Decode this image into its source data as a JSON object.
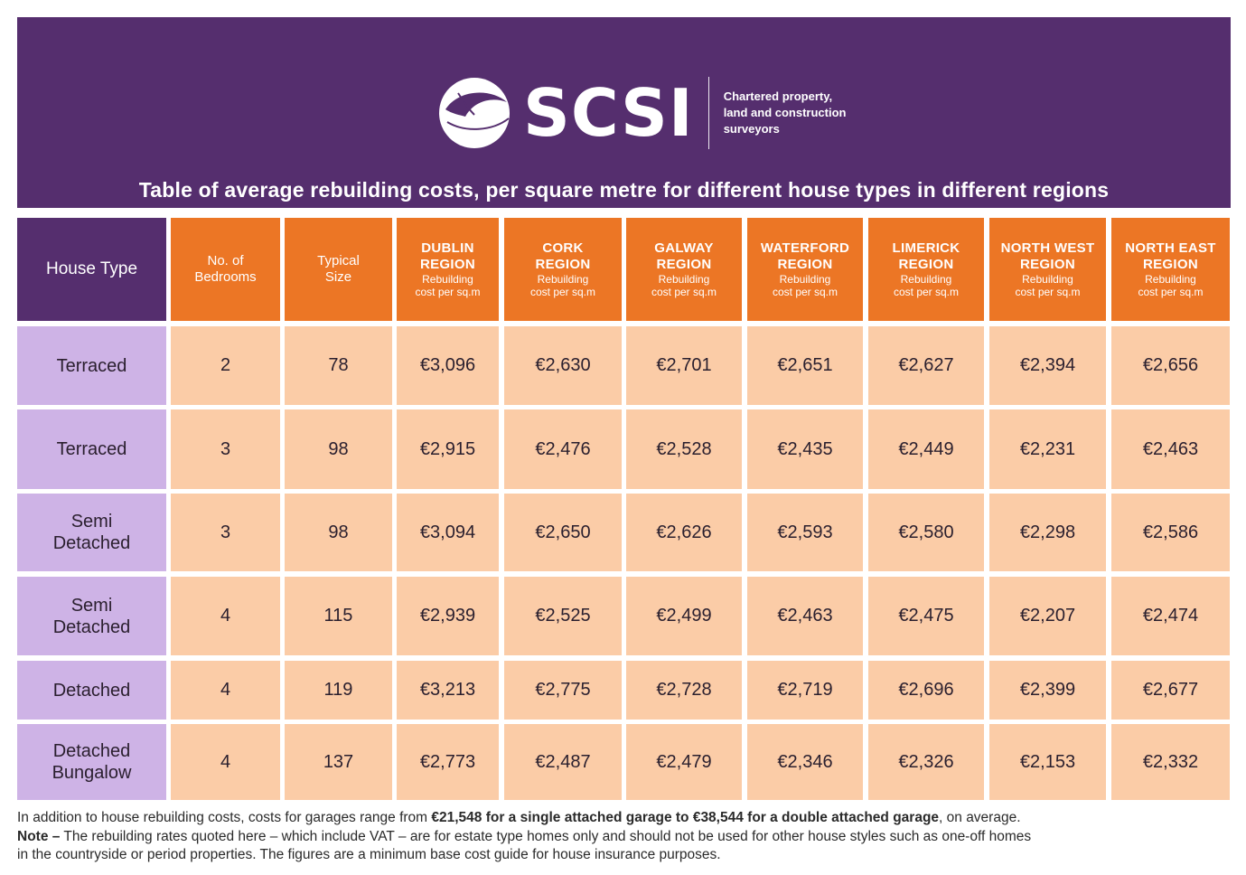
{
  "brand": {
    "name": "SCSI",
    "tagline_lines": [
      "Chartered property,",
      "land and construction",
      "surveyors"
    ],
    "logo_icon": "scsi-globe-icon",
    "colors": {
      "purple": "#552e6e",
      "orange": "#ec7625",
      "lilac": "#ceb3e6",
      "peach": "#fbcca7"
    }
  },
  "title": "Table of average rebuilding costs, per square metre for different house types in different regions",
  "table": {
    "headers": {
      "house_type": "House Type",
      "bedrooms_lines": [
        "No. of",
        "Bedrooms"
      ],
      "size_lines": [
        "Typical",
        "Size"
      ],
      "region_sub_lines": [
        "Rebuilding",
        "cost per sq.m"
      ],
      "regions": [
        {
          "line1": "DUBLIN",
          "line2": "REGION"
        },
        {
          "line1": "CORK",
          "line2": "REGION"
        },
        {
          "line1": "GALWAY",
          "line2": "REGION"
        },
        {
          "line1": "WATERFORD",
          "line2": "REGION"
        },
        {
          "line1": "LIMERICK",
          "line2": "REGION"
        },
        {
          "line1": "NORTH WEST",
          "line2": "REGION"
        },
        {
          "line1": "NORTH EAST",
          "line2": "REGION"
        }
      ]
    },
    "rows": [
      {
        "type_lines": [
          "Terraced"
        ],
        "bedrooms": "2",
        "size": "78",
        "costs": [
          "€3,096",
          "€2,630",
          "€2,701",
          "€2,651",
          "€2,627",
          "€2,394",
          "€2,656"
        ]
      },
      {
        "type_lines": [
          "Terraced"
        ],
        "bedrooms": "3",
        "size": "98",
        "costs": [
          "€2,915",
          "€2,476",
          "€2,528",
          "€2,435",
          "€2,449",
          "€2,231",
          "€2,463"
        ]
      },
      {
        "type_lines": [
          "Semi",
          "Detached"
        ],
        "bedrooms": "3",
        "size": "98",
        "costs": [
          "€3,094",
          "€2,650",
          "€2,626",
          "€2,593",
          "€2,580",
          "€2,298",
          "€2,586"
        ]
      },
      {
        "type_lines": [
          "Semi",
          "Detached"
        ],
        "bedrooms": "4",
        "size": "115",
        "costs": [
          "€2,939",
          "€2,525",
          "€2,499",
          "€2,463",
          "€2,475",
          "€2,207",
          "€2,474"
        ]
      },
      {
        "type_lines": [
          "Detached"
        ],
        "bedrooms": "4",
        "size": "119",
        "costs": [
          "€3,213",
          "€2,775",
          "€2,728",
          "€2,719",
          "€2,696",
          "€2,399",
          "€2,677"
        ]
      },
      {
        "type_lines": [
          "Detached",
          "Bungalow"
        ],
        "bedrooms": "4",
        "size": "137",
        "costs": [
          "€2,773",
          "€2,487",
          "€2,479",
          "€2,346",
          "€2,326",
          "€2,153",
          "€2,332"
        ]
      }
    ]
  },
  "notes": {
    "line1_pre": "In addition to house rebuilding costs, costs for garages range from ",
    "line1_bold": "€21,548 for a single attached garage to €38,544 for a double attached garage",
    "line1_post": ", on average.",
    "line2_bold": "Note –",
    "line2_text": " The rebuilding rates quoted here – which include VAT – are for estate type homes only and should not be used for other house styles such as one-off homes",
    "line3_text": "in the countryside or period properties. The figures are a minimum base cost guide for house insurance purposes."
  }
}
